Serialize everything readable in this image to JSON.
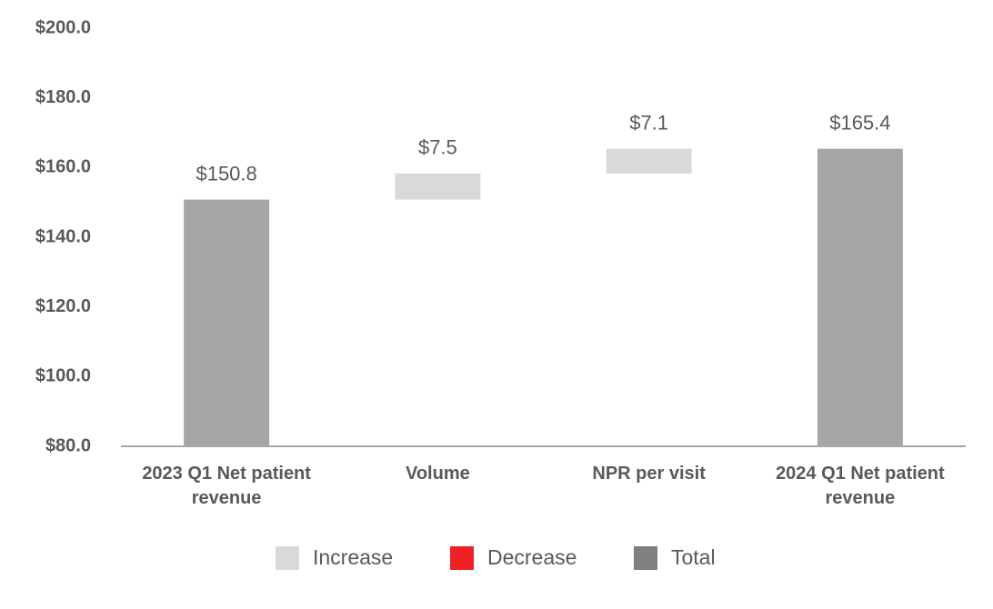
{
  "chart_data": {
    "type": "waterfall",
    "categories": [
      "2023 Q1 Net patient revenue",
      "Volume",
      "NPR per visit",
      "2024 Q1 Net patient revenue"
    ],
    "values": [
      150.8,
      7.5,
      7.1,
      165.4
    ],
    "value_labels": [
      "$150.8",
      "$7.5",
      "$7.1",
      "$165.4"
    ],
    "measure": [
      "total",
      "increase",
      "increase",
      "total"
    ],
    "bar_colors": {
      "increase": "#d9d9d9",
      "decrease": "#ee2024",
      "total": "#a6a6a6"
    },
    "legend": [
      {
        "name": "Increase",
        "color": "#d9d9d9"
      },
      {
        "name": "Decrease",
        "color": "#ee2024"
      },
      {
        "name": "Total",
        "color": "#7f7f7f"
      }
    ],
    "ylim": [
      80,
      200
    ],
    "yticks": [
      {
        "value": 80,
        "label": "$80.0"
      },
      {
        "value": 100,
        "label": "$100.0"
      },
      {
        "value": 120,
        "label": "$120.0"
      },
      {
        "value": 140,
        "label": "$140.0"
      },
      {
        "value": 160,
        "label": "$160.0"
      },
      {
        "value": 180,
        "label": "$180.0"
      },
      {
        "value": 200,
        "label": "$200.0"
      }
    ],
    "grid": false
  }
}
